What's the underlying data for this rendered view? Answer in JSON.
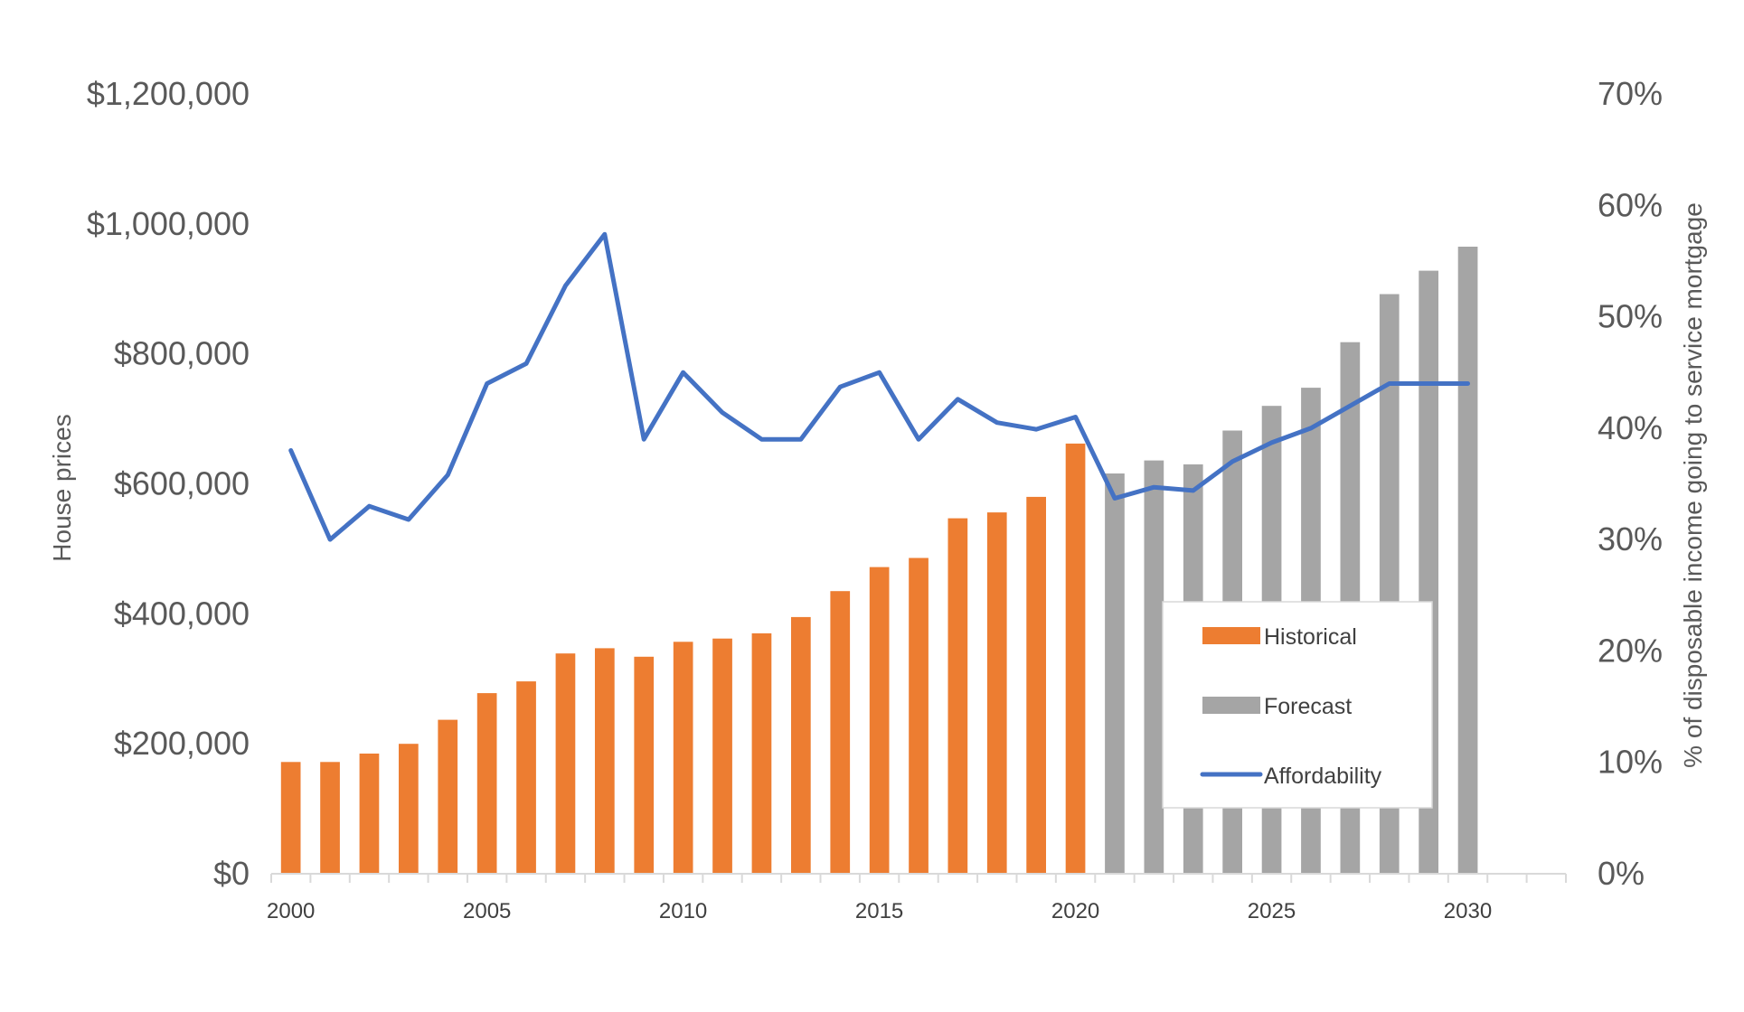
{
  "chart_data": {
    "type": "bar",
    "x": [
      2000,
      2001,
      2002,
      2003,
      2004,
      2005,
      2006,
      2007,
      2008,
      2009,
      2010,
      2011,
      2012,
      2013,
      2014,
      2015,
      2016,
      2017,
      2018,
      2019,
      2020,
      2021,
      2022,
      2023,
      2024,
      2025,
      2026,
      2027,
      2028,
      2029,
      2030
    ],
    "xticks": [
      "2000",
      "2005",
      "2010",
      "2015",
      "2020",
      "2025",
      "2030"
    ],
    "xlim": [
      1999.5,
      2032.5
    ],
    "ylabel": "House prices",
    "ylabel_right": "% of disposable income going to service mortgage",
    "ylim": [
      0,
      1200000
    ],
    "ylim_right": [
      0,
      70
    ],
    "yticks_left": [
      "$0",
      "$200,000",
      "$400,000",
      "$600,000",
      "$800,000",
      "$1,000,000",
      "$1,200,000"
    ],
    "yticks_right": [
      "0%",
      "10%",
      "20%",
      "30%",
      "40%",
      "50%",
      "60%",
      "70%"
    ],
    "grid": false,
    "legend_position": "lower-right",
    "series": [
      {
        "name": "Historical",
        "type": "bar",
        "axis": "left",
        "color": "#ED7D31",
        "values": [
          172000,
          172000,
          185000,
          200000,
          237000,
          278000,
          296000,
          339000,
          347000,
          334000,
          357000,
          362000,
          370000,
          395000,
          435000,
          472000,
          486000,
          547000,
          556000,
          580000,
          662000,
          null,
          null,
          null,
          null,
          null,
          null,
          null,
          null,
          null,
          null
        ]
      },
      {
        "name": "Forecast",
        "type": "bar",
        "axis": "left",
        "color": "#A5A5A5",
        "values": [
          null,
          null,
          null,
          null,
          null,
          null,
          null,
          null,
          null,
          null,
          null,
          null,
          null,
          null,
          null,
          null,
          null,
          null,
          null,
          null,
          null,
          616000,
          636000,
          630000,
          682000,
          720000,
          748000,
          818000,
          892000,
          928000,
          965000
        ]
      },
      {
        "name": "Affordability",
        "type": "line",
        "axis": "right",
        "color": "#4472C4",
        "values": [
          38,
          30,
          33,
          31.8,
          35.8,
          44,
          45.8,
          52.8,
          57.4,
          39,
          45,
          41.4,
          39,
          39,
          43.7,
          45,
          39,
          42.6,
          40.5,
          39.9,
          41,
          33.7,
          34.7,
          34.4,
          37,
          38.7,
          40,
          42,
          44,
          44,
          44
        ]
      }
    ]
  }
}
